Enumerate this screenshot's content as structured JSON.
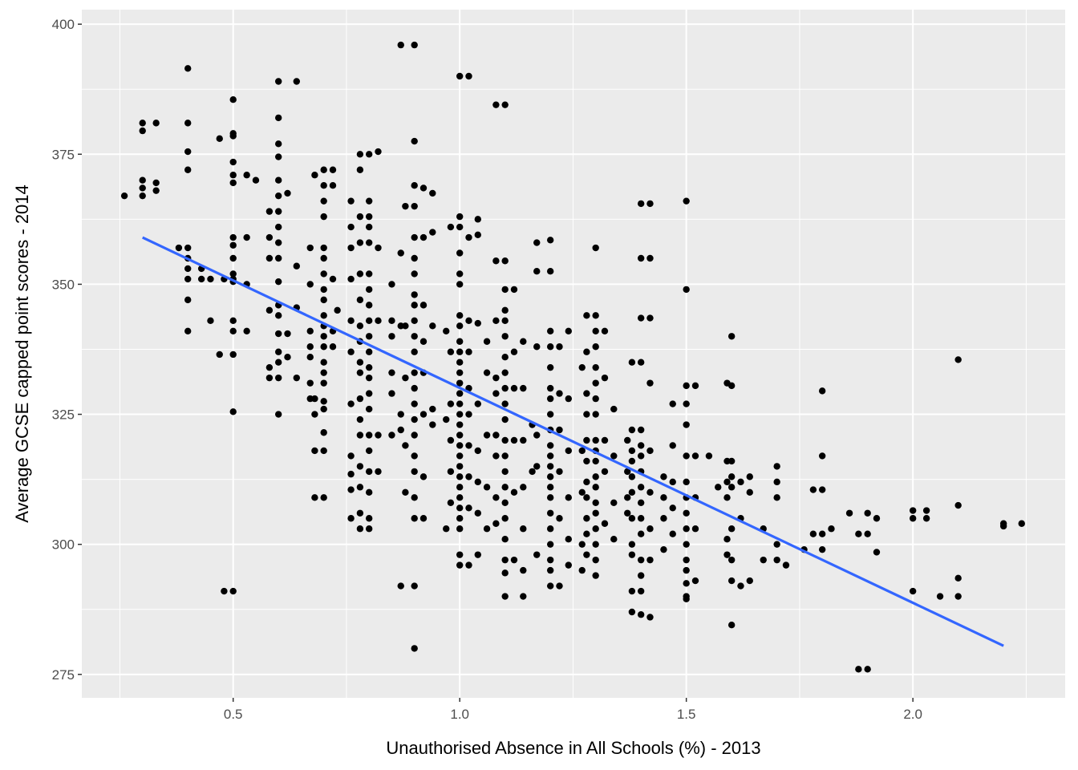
{
  "chart_data": {
    "type": "scatter",
    "title": "",
    "xlabel": "Unauthorised Absence in All Schools (%) - 2013",
    "ylabel": "Average GCSE capped point scores - 2014",
    "xlim": [
      0.166,
      2.336
    ],
    "ylim": [
      270.5,
      402.8
    ],
    "xticks": [
      0.5,
      1.0,
      1.5,
      2.0
    ],
    "xtick_labels": [
      "0.5",
      "1.0",
      "1.5",
      "2.0"
    ],
    "yticks": [
      275,
      300,
      325,
      350,
      375,
      400
    ],
    "ytick_labels": [
      "275",
      "300",
      "325",
      "350",
      "375",
      "400"
    ],
    "grid": true,
    "colors": {
      "panel": "#EBEBEB",
      "grid": "#FFFFFF",
      "points": "#000000",
      "fit_line": "#3366FF"
    },
    "fit_line": {
      "x": [
        0.3,
        2.2
      ],
      "y": [
        359.0,
        280.5
      ]
    },
    "points_by_x": [
      {
        "x": 0.26,
        "y": [
          367
        ]
      },
      {
        "x": 0.3,
        "y": [
          381,
          379.5,
          370,
          367,
          368.5
        ]
      },
      {
        "x": 0.33,
        "y": [
          381,
          369.5,
          368
        ]
      },
      {
        "x": 0.38,
        "y": [
          357
        ]
      },
      {
        "x": 0.4,
        "y": [
          391.5,
          381,
          372,
          375.5,
          357,
          355,
          353,
          351,
          347,
          341
        ]
      },
      {
        "x": 0.43,
        "y": [
          353,
          351
        ]
      },
      {
        "x": 0.45,
        "y": [
          351,
          343
        ]
      },
      {
        "x": 0.47,
        "y": [
          378,
          336.5
        ]
      },
      {
        "x": 0.48,
        "y": [
          291,
          351
        ]
      },
      {
        "x": 0.5,
        "y": [
          385.5,
          379,
          378.5,
          373.5,
          371,
          369.5,
          359,
          357.5,
          355,
          352,
          351,
          350.5,
          343,
          341,
          336.5,
          325.5,
          291
        ]
      },
      {
        "x": 0.53,
        "y": [
          371,
          359,
          350,
          341
        ]
      },
      {
        "x": 0.55,
        "y": [
          370
        ]
      },
      {
        "x": 0.58,
        "y": [
          364,
          359,
          355,
          345,
          334,
          332
        ]
      },
      {
        "x": 0.6,
        "y": [
          389,
          382,
          377,
          374.5,
          370,
          367,
          364,
          361,
          358,
          355,
          350.5,
          346,
          344,
          340.5,
          337,
          335,
          332,
          325
        ]
      },
      {
        "x": 0.62,
        "y": [
          367.5,
          340.5,
          336
        ]
      },
      {
        "x": 0.64,
        "y": [
          389,
          353.5,
          345.5,
          332
        ]
      },
      {
        "x": 0.67,
        "y": [
          357,
          350,
          341,
          338,
          336,
          331,
          328
        ]
      },
      {
        "x": 0.68,
        "y": [
          371,
          328,
          325,
          318,
          309
        ]
      },
      {
        "x": 0.7,
        "y": [
          372,
          369,
          366,
          363,
          357,
          355,
          352,
          349,
          347,
          344,
          342,
          340,
          338,
          335,
          333,
          331,
          327.5,
          326,
          321.5,
          318,
          309
        ]
      },
      {
        "x": 0.72,
        "y": [
          372,
          369,
          351,
          341,
          338
        ]
      },
      {
        "x": 0.73,
        "y": [
          345
        ]
      },
      {
        "x": 0.76,
        "y": [
          366,
          361,
          357,
          351,
          343,
          337,
          327,
          317,
          313.5,
          310.5,
          305
        ]
      },
      {
        "x": 0.78,
        "y": [
          375,
          372,
          363,
          358,
          352,
          347,
          342,
          339,
          335,
          333,
          328,
          324,
          321,
          315,
          311,
          306,
          303
        ]
      },
      {
        "x": 0.8,
        "y": [
          375,
          366,
          363,
          361,
          358,
          352,
          349,
          346,
          343,
          340,
          337,
          334,
          332,
          329,
          326,
          321,
          318,
          314,
          310,
          305,
          303
        ]
      },
      {
        "x": 0.82,
        "y": [
          375.5,
          357,
          343,
          321,
          314
        ]
      },
      {
        "x": 0.85,
        "y": [
          350,
          343,
          340,
          333,
          329,
          321
        ]
      },
      {
        "x": 0.87,
        "y": [
          396,
          356,
          342,
          325,
          322,
          292
        ]
      },
      {
        "x": 0.88,
        "y": [
          365,
          342,
          332,
          319,
          310
        ]
      },
      {
        "x": 0.9,
        "y": [
          396,
          377.5,
          369,
          365,
          359,
          355,
          352,
          348,
          346,
          343,
          340,
          337,
          333,
          330,
          327,
          324,
          321,
          317,
          314,
          309,
          305,
          292,
          280
        ]
      },
      {
        "x": 0.92,
        "y": [
          368.5,
          359,
          346,
          339,
          333,
          325,
          313,
          305
        ]
      },
      {
        "x": 0.94,
        "y": [
          367.5,
          360,
          342,
          326,
          323
        ]
      },
      {
        "x": 0.97,
        "y": [
          341,
          324,
          303
        ]
      },
      {
        "x": 0.98,
        "y": [
          361,
          337,
          327,
          320,
          314,
          308
        ]
      },
      {
        "x": 1.0,
        "y": [
          390,
          363,
          361,
          356,
          352,
          350,
          344,
          342,
          339,
          337,
          335,
          333,
          331,
          329,
          327,
          325,
          323,
          321,
          319,
          317,
          315,
          313,
          311,
          309,
          307,
          305,
          303,
          298,
          296
        ]
      },
      {
        "x": 1.02,
        "y": [
          390,
          359,
          343,
          337,
          330,
          325,
          319,
          313,
          307,
          296
        ]
      },
      {
        "x": 1.04,
        "y": [
          362.5,
          359.5,
          342.5,
          327,
          318,
          312,
          306,
          298
        ]
      },
      {
        "x": 1.06,
        "y": [
          339,
          333,
          321,
          311,
          303
        ]
      },
      {
        "x": 1.08,
        "y": [
          384.5,
          354.5,
          343,
          332,
          329,
          321,
          317,
          309,
          304
        ]
      },
      {
        "x": 1.1,
        "y": [
          384.5,
          354.5,
          349,
          345,
          343,
          340,
          336,
          333,
          330,
          327,
          324,
          320,
          317,
          314,
          311,
          308,
          305,
          301,
          297,
          294.5,
          290
        ]
      },
      {
        "x": 1.12,
        "y": [
          349,
          337,
          330,
          320,
          310,
          297
        ]
      },
      {
        "x": 1.14,
        "y": [
          339,
          330,
          320,
          311,
          303,
          295,
          290
        ]
      },
      {
        "x": 1.16,
        "y": [
          323,
          314
        ]
      },
      {
        "x": 1.17,
        "y": [
          358,
          352.5,
          338,
          321,
          315,
          298
        ]
      },
      {
        "x": 1.2,
        "y": [
          358.5,
          352.5,
          341,
          338,
          334,
          330,
          328,
          325,
          322,
          319,
          317,
          315,
          313,
          311,
          309,
          306,
          303,
          300,
          297,
          295,
          292
        ]
      },
      {
        "x": 1.22,
        "y": [
          338,
          329,
          322,
          314,
          305,
          292
        ]
      },
      {
        "x": 1.24,
        "y": [
          341,
          328,
          318,
          309,
          301,
          296
        ]
      },
      {
        "x": 1.27,
        "y": [
          334,
          318,
          310,
          300,
          295
        ]
      },
      {
        "x": 1.28,
        "y": [
          344,
          337,
          329,
          325,
          320,
          316,
          312,
          309,
          305,
          302,
          298
        ]
      },
      {
        "x": 1.3,
        "y": [
          357,
          344,
          341,
          338,
          334,
          331,
          328,
          325,
          320,
          318,
          316,
          313,
          311,
          308,
          306,
          303,
          300,
          297,
          294
        ]
      },
      {
        "x": 1.32,
        "y": [
          341,
          332,
          320,
          314,
          304
        ]
      },
      {
        "x": 1.34,
        "y": [
          326,
          317,
          308,
          301
        ]
      },
      {
        "x": 1.37,
        "y": [
          320,
          314,
          309,
          306
        ]
      },
      {
        "x": 1.38,
        "y": [
          335,
          322,
          318,
          316,
          313,
          310,
          305,
          300,
          298,
          291,
          287
        ]
      },
      {
        "x": 1.4,
        "y": [
          365.5,
          355,
          343.5,
          335,
          322,
          319,
          317,
          314,
          311,
          308,
          305,
          302,
          297,
          294,
          291,
          286.5
        ]
      },
      {
        "x": 1.42,
        "y": [
          365.5,
          355,
          343.5,
          331,
          318,
          310,
          303,
          297,
          286
        ]
      },
      {
        "x": 1.45,
        "y": [
          313,
          309,
          305,
          299
        ]
      },
      {
        "x": 1.47,
        "y": [
          327,
          319,
          312,
          307,
          302
        ]
      },
      {
        "x": 1.5,
        "y": [
          366,
          349,
          330.5,
          327,
          323,
          317,
          312,
          309,
          306,
          303,
          300,
          297,
          295,
          292.5,
          290,
          289.5
        ]
      },
      {
        "x": 1.52,
        "y": [
          330.5,
          317,
          309,
          303,
          293
        ]
      },
      {
        "x": 1.55,
        "y": [
          317
        ]
      },
      {
        "x": 1.57,
        "y": [
          311
        ]
      },
      {
        "x": 1.59,
        "y": [
          331,
          316,
          312,
          309,
          301,
          298
        ]
      },
      {
        "x": 1.6,
        "y": [
          340,
          330.5,
          316,
          313,
          311,
          303,
          297,
          293,
          284.5
        ]
      },
      {
        "x": 1.62,
        "y": [
          312,
          305,
          292
        ]
      },
      {
        "x": 1.64,
        "y": [
          313,
          310,
          293
        ]
      },
      {
        "x": 1.67,
        "y": [
          303,
          297
        ]
      },
      {
        "x": 1.7,
        "y": [
          315,
          312,
          309,
          300,
          297
        ]
      },
      {
        "x": 1.72,
        "y": [
          296
        ]
      },
      {
        "x": 1.76,
        "y": [
          299
        ]
      },
      {
        "x": 1.78,
        "y": [
          310.5,
          302
        ]
      },
      {
        "x": 1.8,
        "y": [
          329.5,
          317,
          310.5,
          302,
          299
        ]
      },
      {
        "x": 1.82,
        "y": [
          303
        ]
      },
      {
        "x": 1.86,
        "y": [
          306
        ]
      },
      {
        "x": 1.88,
        "y": [
          302,
          276
        ]
      },
      {
        "x": 1.9,
        "y": [
          306,
          302,
          276
        ]
      },
      {
        "x": 1.92,
        "y": [
          305,
          298.5
        ]
      },
      {
        "x": 2.0,
        "y": [
          306.5,
          305,
          291
        ]
      },
      {
        "x": 2.03,
        "y": [
          306.5,
          305
        ]
      },
      {
        "x": 2.06,
        "y": [
          290
        ]
      },
      {
        "x": 2.1,
        "y": [
          335.5,
          307.5,
          293.5,
          290
        ]
      },
      {
        "x": 2.2,
        "y": [
          304,
          303.5
        ]
      },
      {
        "x": 2.24,
        "y": [
          304
        ]
      }
    ]
  }
}
